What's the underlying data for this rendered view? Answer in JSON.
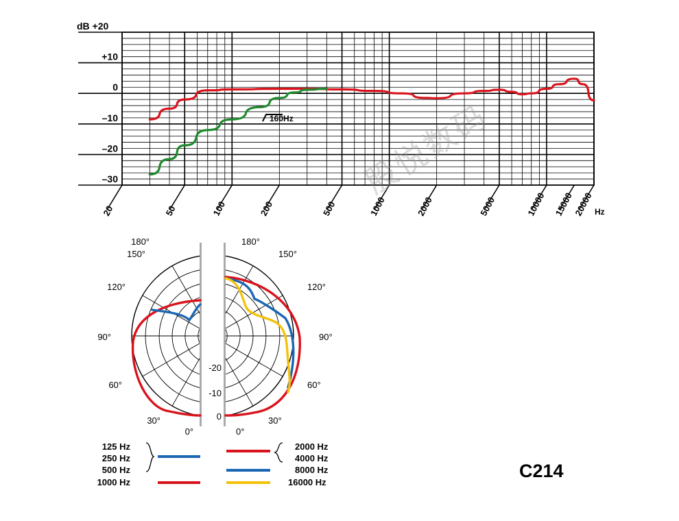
{
  "model_label": "C214",
  "watermark": "股悦数码",
  "chart_data": [
    {
      "type": "line",
      "xscale": "log",
      "xlim": [
        20,
        20000
      ],
      "ylim": [
        -30,
        20
      ],
      "x_unit": "Hz",
      "y_unit": "dB",
      "x_ticks": [
        "20",
        "50",
        "100",
        "200",
        "500",
        "1000",
        "2000",
        "5000",
        "10000",
        "15000",
        "20000"
      ],
      "y_ticks": [
        {
          "value": 20,
          "label": "dB +20"
        },
        {
          "value": 10,
          "label": "+10"
        },
        {
          "value": 0,
          "label": "0"
        },
        {
          "value": -10,
          "label": "–10"
        },
        {
          "value": -20,
          "label": "–20"
        },
        {
          "value": -30,
          "label": "–30"
        }
      ],
      "grid": true,
      "annotation": "160Hz",
      "series": [
        {
          "color": "#d9131c",
          "points": [
            [
              30,
              -8.5
            ],
            [
              40,
              -5
            ],
            [
              50,
              -2
            ],
            [
              70,
              1
            ],
            [
              100,
              1.3
            ],
            [
              200,
              1.5
            ],
            [
              300,
              1.5
            ],
            [
              500,
              1.3
            ],
            [
              800,
              0.8
            ],
            [
              1200,
              0
            ],
            [
              1700,
              -1.5
            ],
            [
              2000,
              -1.6
            ],
            [
              3000,
              0
            ],
            [
              4000,
              0.8
            ],
            [
              5000,
              1.2
            ],
            [
              6000,
              0.5
            ],
            [
              7000,
              -0.3
            ],
            [
              8000,
              0
            ],
            [
              10000,
              1.5
            ],
            [
              12000,
              3
            ],
            [
              15000,
              4.8
            ],
            [
              17000,
              3
            ],
            [
              20000,
              -2.3
            ]
          ]
        },
        {
          "color": "#1f8a2e",
          "points": [
            [
              30,
              -26.5
            ],
            [
              40,
              -21.5
            ],
            [
              50,
              -17
            ],
            [
              70,
              -12
            ],
            [
              100,
              -8.5
            ],
            [
              150,
              -4.5
            ],
            [
              200,
              -1.5
            ],
            [
              250,
              0.3
            ],
            [
              300,
              1.2
            ],
            [
              400,
              1.5
            ]
          ]
        }
      ]
    },
    {
      "type": "polar",
      "scale_labels": [
        "0",
        "-10",
        "-20"
      ],
      "angle_labels_left": [
        "180°",
        "150°",
        "120°",
        "90°",
        "60°",
        "30°",
        "0°"
      ],
      "angle_labels_right": [
        "180°",
        "150°",
        "120°",
        "90°",
        "60°",
        "30°",
        "0°"
      ],
      "left_series": [
        {
          "color": "#1a66b3",
          "frequencies": [
            "125 Hz",
            "250 Hz",
            "500 Hz"
          ]
        },
        {
          "color": "#d9131c",
          "frequencies": [
            "1000 Hz"
          ]
        }
      ],
      "right_series": [
        {
          "color": "#d9131c",
          "frequencies": [
            "2000 Hz",
            "4000 Hz"
          ]
        },
        {
          "color": "#1a66b3",
          "frequencies": [
            "8000 Hz"
          ]
        },
        {
          "color": "#f4c20d",
          "frequencies": [
            "16000 Hz"
          ]
        }
      ]
    }
  ]
}
